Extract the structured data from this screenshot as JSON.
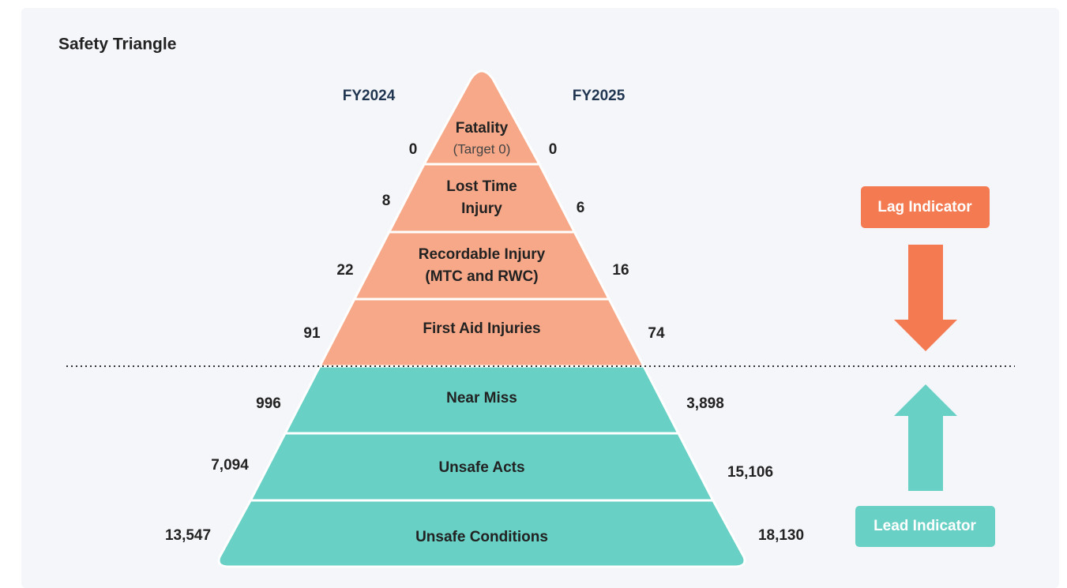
{
  "title": "Safety Triangle",
  "columns": [
    "FY2024",
    "FY2025"
  ],
  "levels": [
    {
      "lines": [
        "Fatality"
      ],
      "note": "(Target 0)",
      "fy2024": "0",
      "fy2025": "0"
    },
    {
      "lines": [
        "Lost Time",
        "Injury"
      ],
      "fy2024": "8",
      "fy2025": "6"
    },
    {
      "lines": [
        "Recordable Injury",
        "(MTC and RWC)"
      ],
      "fy2024": "22",
      "fy2025": "16"
    },
    {
      "lines": [
        "First Aid Injuries"
      ],
      "fy2024": "91",
      "fy2025": "74"
    },
    {
      "lines": [
        "Near Miss"
      ],
      "fy2024": "996",
      "fy2025": "3,898"
    },
    {
      "lines": [
        "Unsafe Acts"
      ],
      "fy2024": "7,094",
      "fy2025": "15,106"
    },
    {
      "lines": [
        "Unsafe Conditions"
      ],
      "fy2024": "13,547",
      "fy2025": "18,130"
    }
  ],
  "indicators": {
    "lag": "Lag Indicator",
    "lead": "Lead Indicator"
  }
}
